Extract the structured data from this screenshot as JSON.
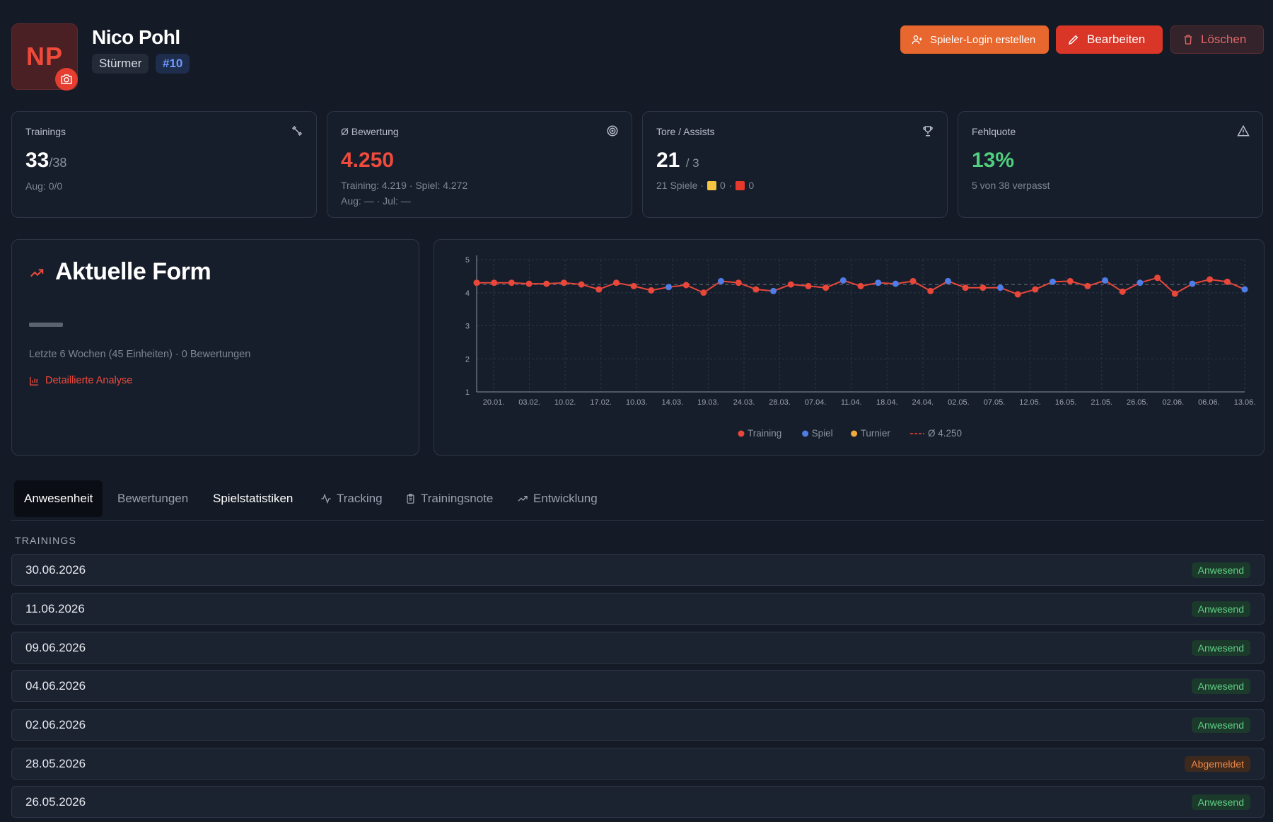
{
  "player": {
    "initials": "NP",
    "name": "Nico Pohl",
    "position": "Stürmer",
    "number": "#10"
  },
  "actions": {
    "login_label": "Spieler-Login erstellen",
    "edit_label": "Bearbeiten",
    "delete_label": "Löschen"
  },
  "stats": {
    "trainings": {
      "label": "Trainings",
      "value": "33",
      "total": "/38",
      "sub": "Aug: 0/0",
      "icon": "dumbbell-icon"
    },
    "rating": {
      "label": "Ø Bewertung",
      "value": "4.250",
      "sub1": "Training: 4.219 · Spiel: 4.272",
      "sub2": "Aug: — · Jul: —",
      "icon": "target-icon"
    },
    "goals": {
      "label": "Tore / Assists",
      "value": "21",
      "assists": "/ 3",
      "games": "21 Spiele ·",
      "yellow": "0",
      "sep": "·",
      "red": "0",
      "icon": "trophy-icon"
    },
    "absence": {
      "label": "Fehlquote",
      "value": "13%",
      "sub": "5 von 38 verpasst",
      "icon": "warning-icon"
    }
  },
  "form": {
    "title": "Aktuelle Form",
    "subtitle": "Letzte 6 Wochen (45 Einheiten) · 0 Bewertungen",
    "link": "Detaillierte Analyse"
  },
  "colors": {
    "training": "#e8473a",
    "spiel": "#4f7de8",
    "turnier": "#f2a93b",
    "avg": "#e8473a"
  },
  "chart_data": {
    "type": "line",
    "ylim": [
      1,
      5
    ],
    "yticks": [
      "1",
      "2",
      "3",
      "4",
      "5"
    ],
    "xticks": [
      "20.01.",
      "03.02.",
      "10.02.",
      "17.02.",
      "10.03.",
      "14.03.",
      "19.03.",
      "24.03.",
      "28.03.",
      "07.04.",
      "11.04.",
      "18.04.",
      "24.04.",
      "02.05.",
      "07.05.",
      "12.05.",
      "16.05.",
      "21.05.",
      "26.05.",
      "02.06.",
      "06.06.",
      "13.06."
    ],
    "average": 4.25,
    "legend": [
      {
        "name": "Training",
        "color": "#e8473a"
      },
      {
        "name": "Spiel",
        "color": "#4f7de8"
      },
      {
        "name": "Turnier",
        "color": "#f2a93b"
      },
      {
        "name": "Ø 4.250",
        "color": "#e8473a"
      }
    ],
    "values": [
      4.3,
      4.3,
      4.3,
      4.27,
      4.27,
      4.3,
      4.25,
      4.1,
      4.3,
      4.2,
      4.07,
      4.17,
      4.23,
      4.0,
      4.35,
      4.3,
      4.1,
      4.05,
      4.25,
      4.2,
      4.15,
      4.37,
      4.2,
      4.3,
      4.27,
      4.35,
      4.05,
      4.35,
      4.15,
      4.15,
      4.15,
      3.95,
      4.1,
      4.33,
      4.35,
      4.2,
      4.37,
      4.03,
      4.3,
      4.45,
      3.97,
      4.27,
      4.4,
      4.33,
      4.1
    ],
    "types": [
      "training",
      "training",
      "training",
      "training",
      "training",
      "training",
      "training",
      "training",
      "training",
      "training",
      "training",
      "spiel",
      "training",
      "training",
      "spiel",
      "training",
      "training",
      "spiel",
      "training",
      "training",
      "training",
      "spiel",
      "training",
      "spiel",
      "spiel",
      "training",
      "training",
      "spiel",
      "training",
      "training",
      "spiel",
      "training",
      "training",
      "spiel",
      "training",
      "training",
      "spiel",
      "training",
      "spiel",
      "training",
      "training",
      "spiel",
      "training",
      "training",
      "spiel"
    ]
  },
  "tabs": [
    {
      "label": "Anwesenheit",
      "icon": ""
    },
    {
      "label": "Bewertungen",
      "icon": ""
    },
    {
      "label": "Spielstatistiken",
      "icon": ""
    },
    {
      "label": "Tracking",
      "icon": "activity-icon"
    },
    {
      "label": "Trainingsnote",
      "icon": "clipboard-icon"
    },
    {
      "label": "Entwicklung",
      "icon": "trending-icon"
    }
  ],
  "trainings": {
    "label": "TRAININGS",
    "rows": [
      {
        "date": "30.06.2026",
        "status": "Anwesend"
      },
      {
        "date": "11.06.2026",
        "status": "Anwesend"
      },
      {
        "date": "09.06.2026",
        "status": "Anwesend"
      },
      {
        "date": "04.06.2026",
        "status": "Anwesend"
      },
      {
        "date": "02.06.2026",
        "status": "Anwesend"
      },
      {
        "date": "28.05.2026",
        "status": "Abgemeldet"
      },
      {
        "date": "26.05.2026",
        "status": "Anwesend"
      }
    ]
  }
}
